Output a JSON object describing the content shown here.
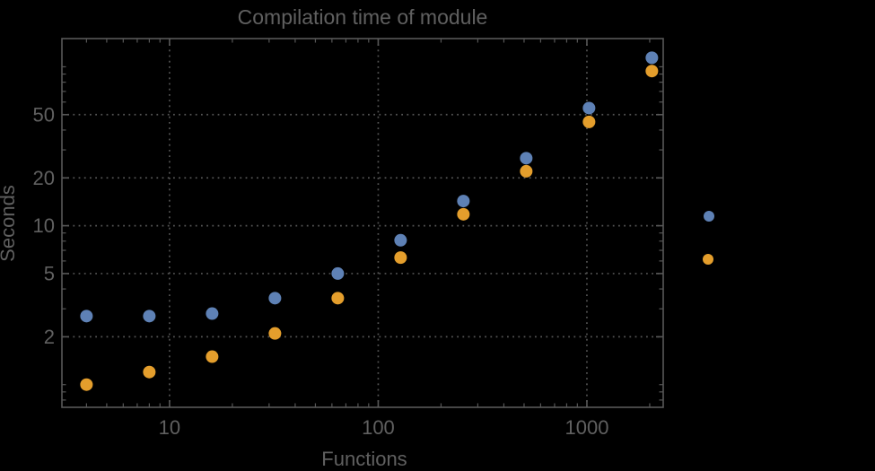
{
  "chart_data": {
    "type": "scatter",
    "title": "Compilation time of module",
    "xlabel": "Functions",
    "ylabel": "Seconds",
    "x_scale": "log",
    "y_scale": "log",
    "grid": "dotted",
    "background": "#000000",
    "frame_color": "#575757",
    "grid_color": "#545454",
    "text_color": "#606060",
    "x_range": [
      3.05,
      2321
    ],
    "y_range": [
      0.72,
      150.5
    ],
    "x_ticks": [
      10,
      100,
      1000
    ],
    "y_ticks": [
      2,
      5,
      10,
      20,
      50
    ],
    "x": [
      4,
      8,
      16,
      32,
      64,
      128,
      256,
      512,
      1024,
      2048
    ],
    "series": [
      {
        "name": "series-1",
        "color": "#5E81B5",
        "values": [
          2.7,
          2.7,
          2.8,
          3.5,
          5.0,
          8.1,
          14.3,
          26.6,
          55,
          114
        ]
      },
      {
        "name": "series-2",
        "color": "#E49E2C",
        "values": [
          1.0,
          1.2,
          1.5,
          2.1,
          3.5,
          6.3,
          11.8,
          22,
          45,
          94
        ]
      }
    ],
    "legend": {
      "position": "right-outside",
      "labels_visible": false,
      "markers": [
        {
          "series": "series-1",
          "color": "#5E81B5"
        },
        {
          "series": "series-2",
          "color": "#E49E2C"
        }
      ]
    }
  }
}
